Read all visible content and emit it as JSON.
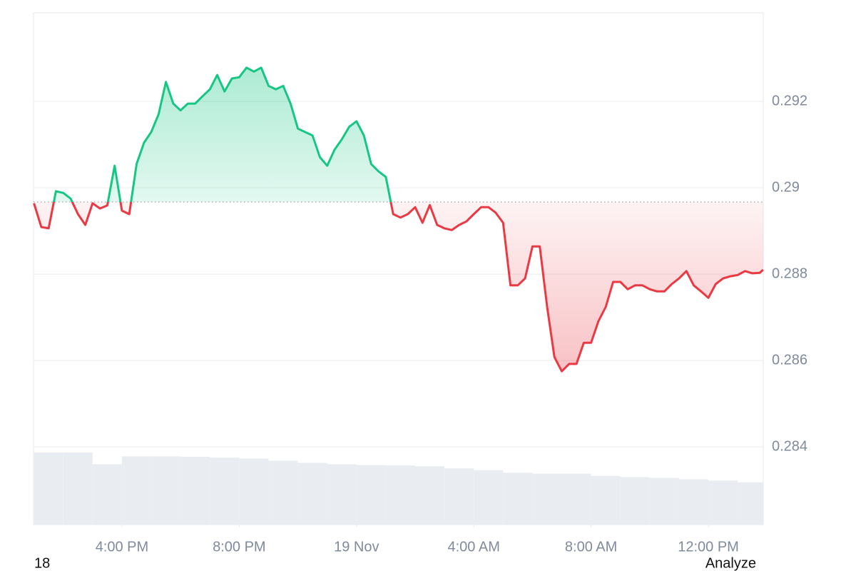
{
  "chart_data": {
    "type": "baseline-line",
    "x": [
      13,
      13.25,
      13.5,
      13.75,
      14,
      14.25,
      14.5,
      14.75,
      15,
      15.25,
      15.5,
      15.75,
      16,
      16.25,
      16.5,
      16.75,
      17,
      17.25,
      17.5,
      17.75,
      18,
      18.25,
      18.5,
      18.75,
      19,
      19.25,
      19.5,
      19.75,
      20,
      20.25,
      20.5,
      20.75,
      21,
      21.25,
      21.5,
      21.75,
      22,
      22.25,
      22.5,
      22.75,
      23,
      23.25,
      23.5,
      23.75,
      24,
      24.25,
      24.5,
      24.75,
      25,
      25.25,
      25.5,
      25.75,
      26,
      26.25,
      26.5,
      26.75,
      27,
      27.25,
      27.5,
      27.75,
      28,
      28.25,
      28.5,
      28.75,
      29,
      29.25,
      29.5,
      29.75,
      30,
      30.25,
      30.5,
      30.75,
      31,
      31.25,
      31.5,
      31.75,
      32,
      32.25,
      32.5,
      32.75,
      33,
      33.25,
      33.5,
      33.75,
      34,
      34.25,
      34.5,
      34.75,
      35,
      35.25,
      35.5,
      35.75,
      36,
      36.25,
      36.5,
      36.75,
      37,
      37.25,
      37.5,
      37.75,
      37.87
    ],
    "values": [
      0.28964,
      0.28909,
      0.28906,
      0.28992,
      0.28988,
      0.28975,
      0.28939,
      0.28914,
      0.28964,
      0.28952,
      0.28959,
      0.29051,
      0.28947,
      0.28939,
      0.29055,
      0.29104,
      0.29129,
      0.2917,
      0.29245,
      0.29195,
      0.29179,
      0.29195,
      0.29195,
      0.29212,
      0.29228,
      0.29261,
      0.29223,
      0.29253,
      0.29256,
      0.29278,
      0.29269,
      0.29278,
      0.29236,
      0.29228,
      0.29236,
      0.29195,
      0.29137,
      0.29129,
      0.29121,
      0.29071,
      0.29051,
      0.29088,
      0.29112,
      0.29141,
      0.29154,
      0.29121,
      0.29055,
      0.29038,
      0.29025,
      0.28939,
      0.28931,
      0.28939,
      0.28955,
      0.28919,
      0.2896,
      0.28914,
      0.28906,
      0.28902,
      0.28914,
      0.28922,
      0.28939,
      0.28955,
      0.28955,
      0.28942,
      0.28919,
      0.28774,
      0.28774,
      0.2879,
      0.28864,
      0.28864,
      0.28724,
      0.28608,
      0.28575,
      0.28592,
      0.28592,
      0.28641,
      0.28641,
      0.28691,
      0.28724,
      0.28782,
      0.28782,
      0.28765,
      0.28774,
      0.28774,
      0.28765,
      0.2876,
      0.2876,
      0.28777,
      0.2879,
      0.28807,
      0.28774,
      0.2876,
      0.28745,
      0.28777,
      0.2879,
      0.28795,
      0.28798,
      0.28807,
      0.28802,
      0.28803,
      0.2881
    ],
    "baseline": 0.28967,
    "up_color": "#16c784",
    "down_color": "#ea3943",
    "volume": {
      "x": [
        13,
        14,
        15,
        16,
        17,
        18,
        19,
        20,
        21,
        22,
        23,
        24,
        25,
        26,
        27,
        28,
        29,
        30,
        31,
        32,
        33,
        34,
        35,
        36,
        37
      ],
      "values": [
        0.28387,
        0.28387,
        0.2836,
        0.28378,
        0.28378,
        0.28377,
        0.28375,
        0.28373,
        0.28368,
        0.28363,
        0.2836,
        0.28358,
        0.28357,
        0.28355,
        0.2835,
        0.28346,
        0.2834,
        0.28338,
        0.28338,
        0.28333,
        0.2833,
        0.28328,
        0.28325,
        0.28322,
        0.28318
      ],
      "color": "#e9edf2"
    },
    "xlim": [
      12.985,
      37.872
    ],
    "xticks": [
      {
        "value": 16,
        "label": "4:00 PM"
      },
      {
        "value": 20,
        "label": "8:00 PM"
      },
      {
        "value": 24,
        "label": "19 Nov"
      },
      {
        "value": 28,
        "label": "4:00 AM"
      },
      {
        "value": 32,
        "label": "8:00 AM"
      },
      {
        "value": 36,
        "label": "12:00 PM"
      }
    ],
    "ylim": [
      0.2822,
      0.29405
    ],
    "yticks": [
      0.284,
      0.286,
      0.288,
      0.29,
      0.292
    ],
    "grid": true,
    "footer_left": "18",
    "footer_right": "Analyze"
  }
}
